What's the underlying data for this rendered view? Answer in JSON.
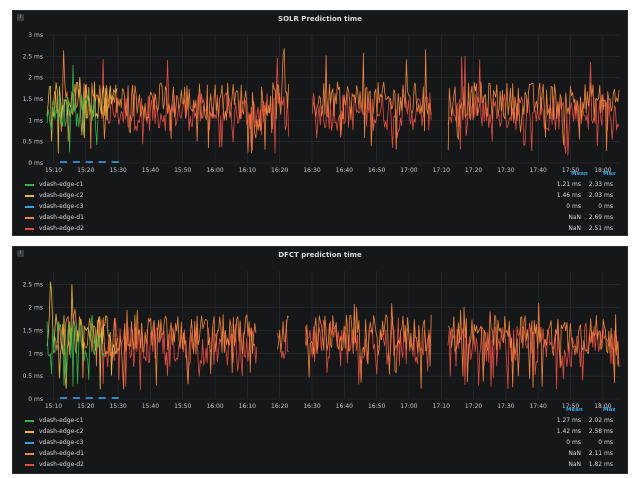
{
  "panels": [
    {
      "title": "SOLR Prediction time",
      "y_ticks": [
        "3 ms",
        "2.5 ms",
        "2 ms",
        "1.5 ms",
        "1 ms",
        "0.5 ms",
        "0 ms"
      ],
      "x_ticks": [
        "15:10",
        "15:20",
        "15:30",
        "15:40",
        "15:50",
        "16:00",
        "16:10",
        "16:20",
        "16:30",
        "16:40",
        "16:50",
        "17:00",
        "17:10",
        "17:20",
        "17:30",
        "17:40",
        "17:50",
        "18:00"
      ],
      "legend_headers": {
        "mean": "Mean",
        "max": "Max"
      },
      "legend": [
        {
          "name": "vdash-edge-c1",
          "mean": "1.21 ms",
          "max": "2.33 ms",
          "color": "#37b34a"
        },
        {
          "name": "vdash-edge-c2",
          "mean": "1.46 ms",
          "max": "2.03 ms",
          "color": "#eab839"
        },
        {
          "name": "vdash-edge-c3",
          "mean": "0 ms",
          "max": "0 ms",
          "color": "#33a2e5"
        },
        {
          "name": "vdash-edge-d1",
          "mean": "NaN",
          "max": "2.69 ms",
          "color": "#ef843c"
        },
        {
          "name": "vdash-edge-d2",
          "mean": "NaN",
          "max": "2.51 ms",
          "color": "#e24d42"
        }
      ]
    },
    {
      "title": "DFCT prediction time",
      "y_ticks": [
        "2.5 ms",
        "2 ms",
        "1.5 ms",
        "1 ms",
        "0.5 ms",
        "0 ms"
      ],
      "x_ticks": [
        "15:10",
        "15:20",
        "15:30",
        "15:40",
        "15:50",
        "16:00",
        "16:10",
        "16:20",
        "16:30",
        "16:40",
        "16:50",
        "17:00",
        "17:10",
        "17:20",
        "17:30",
        "17:40",
        "17:50",
        "18:00"
      ],
      "legend_headers": {
        "mean": "Mean",
        "max": "Max"
      },
      "legend": [
        {
          "name": "vdash-edge-c1",
          "mean": "1.27 ms",
          "max": "2.02 ms",
          "color": "#37b34a"
        },
        {
          "name": "vdash-edge-c2",
          "mean": "1.42 ms",
          "max": "2.58 ms",
          "color": "#eab839"
        },
        {
          "name": "vdash-edge-c3",
          "mean": "0 ms",
          "max": "0 ms",
          "color": "#33a2e5"
        },
        {
          "name": "vdash-edge-d1",
          "mean": "NaN",
          "max": "2.11 ms",
          "color": "#ef843c"
        },
        {
          "name": "vdash-edge-d2",
          "mean": "NaN",
          "max": "1.82 ms",
          "color": "#e24d42"
        }
      ]
    }
  ],
  "chart_data": [
    {
      "type": "line",
      "title": "SOLR Prediction time",
      "ylim": [
        0,
        3
      ],
      "y_unit": "ms",
      "x_range": [
        "15:10",
        "18:05"
      ],
      "grid": true,
      "legend_placement": "bottom",
      "series": [
        {
          "name": "vdash-edge-c1",
          "color": "#37b34a",
          "active_range": [
            "15:08",
            "15:24"
          ],
          "level": 1.21,
          "peak": 2.33
        },
        {
          "name": "vdash-edge-c2",
          "color": "#eab839",
          "active_range": [
            "15:08",
            "15:30"
          ],
          "level": 1.46,
          "peak": 2.03
        },
        {
          "name": "vdash-edge-c3",
          "color": "#33a2e5",
          "active_range": [
            "15:12",
            "15:30"
          ],
          "level": 0,
          "peak": 0
        },
        {
          "name": "vdash-edge-d1",
          "color": "#ef843c",
          "active_range": [
            "15:10",
            "18:05"
          ],
          "level": 1.45,
          "peak": 2.69
        },
        {
          "name": "vdash-edge-d2",
          "color": "#e24d42",
          "active_range": [
            "15:25",
            "18:05"
          ],
          "level": 1.2,
          "peak": 2.51
        }
      ],
      "gaps": [
        [
          "16:23",
          "16:30"
        ],
        [
          "17:07",
          "17:12"
        ]
      ]
    },
    {
      "type": "line",
      "title": "DFCT prediction time",
      "ylim": [
        0,
        2.8
      ],
      "y_unit": "ms",
      "x_range": [
        "15:10",
        "18:05"
      ],
      "grid": true,
      "legend_placement": "bottom",
      "series": [
        {
          "name": "vdash-edge-c1",
          "color": "#37b34a",
          "active_range": [
            "15:08",
            "15:26"
          ],
          "level": 1.27,
          "peak": 2.02
        },
        {
          "name": "vdash-edge-c2",
          "color": "#eab839",
          "active_range": [
            "15:08",
            "15:30"
          ],
          "level": 1.42,
          "peak": 2.58
        },
        {
          "name": "vdash-edge-c3",
          "color": "#33a2e5",
          "active_range": [
            "15:12",
            "15:30"
          ],
          "level": 0,
          "peak": 0
        },
        {
          "name": "vdash-edge-d1",
          "color": "#ef843c",
          "active_range": [
            "15:10",
            "18:05"
          ],
          "level": 1.4,
          "peak": 2.11
        },
        {
          "name": "vdash-edge-d2",
          "color": "#e24d42",
          "active_range": [
            "15:25",
            "18:05"
          ],
          "level": 1.15,
          "peak": 1.82
        }
      ],
      "gaps": [
        [
          "16:13",
          "16:19"
        ],
        [
          "16:23",
          "16:28"
        ],
        [
          "17:07",
          "17:12"
        ]
      ]
    }
  ]
}
